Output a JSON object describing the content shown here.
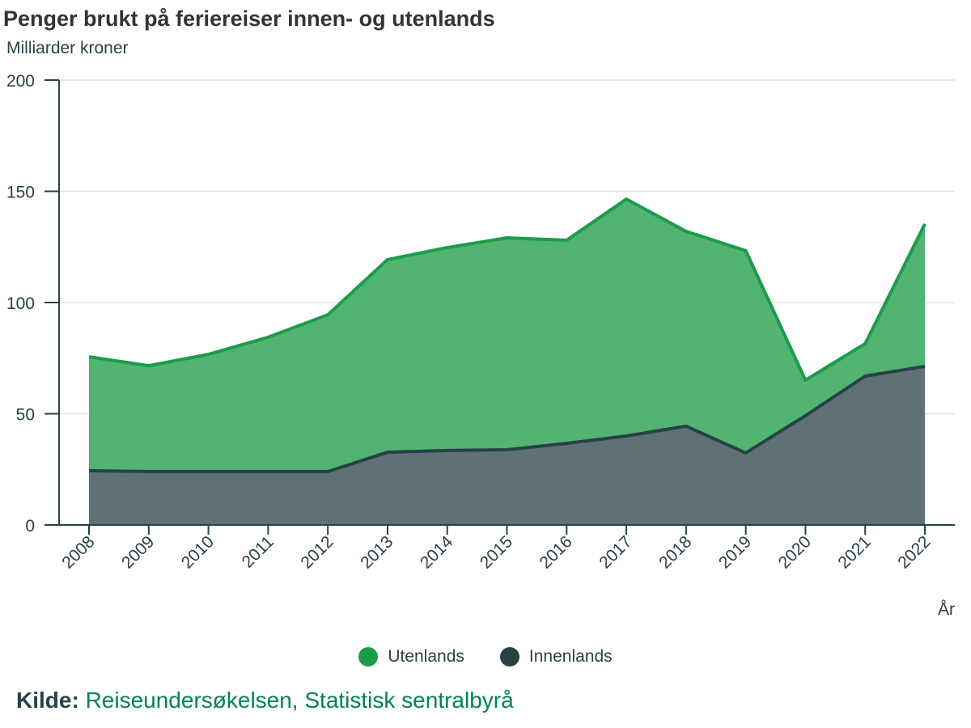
{
  "chart_data": {
    "type": "area",
    "stacked": true,
    "title": "Penger brukt på feriereiser innen- og utenlands",
    "subtitle": "Milliarder kroner",
    "xlabel": "År",
    "ylabel": "Milliarder kroner",
    "ylim": [
      0,
      200
    ],
    "yticks": [
      0,
      50,
      100,
      150,
      200
    ],
    "grid": true,
    "legend_position": "bottom",
    "categories": [
      "2008",
      "2009",
      "2010",
      "2011",
      "2012",
      "2013",
      "2014",
      "2015",
      "2016",
      "2017",
      "2018",
      "2019",
      "2020",
      "2021",
      "2022"
    ],
    "series": [
      {
        "name": "Innenlands",
        "color": "#274247",
        "fill": "#5f7175",
        "values": [
          24.4,
          24.0,
          24.0,
          24.0,
          24.0,
          32.7,
          33.5,
          33.8,
          36.7,
          40.0,
          44.4,
          32.4,
          49.1,
          66.9,
          71.3
        ]
      },
      {
        "name": "Utenlands",
        "color": "#1a9d49",
        "fill": "#52b372",
        "values": [
          51.2,
          47.6,
          52.7,
          60.4,
          70.5,
          86.6,
          91.2,
          95.3,
          91.3,
          106.5,
          87.6,
          90.9,
          16.0,
          14.6,
          64.0
        ]
      }
    ]
  },
  "legend": [
    "Utenlands",
    "Innenlands"
  ],
  "source": {
    "label": "Kilde:",
    "text": "Reiseundersøkelsen, Statistisk sentralbyrå"
  }
}
